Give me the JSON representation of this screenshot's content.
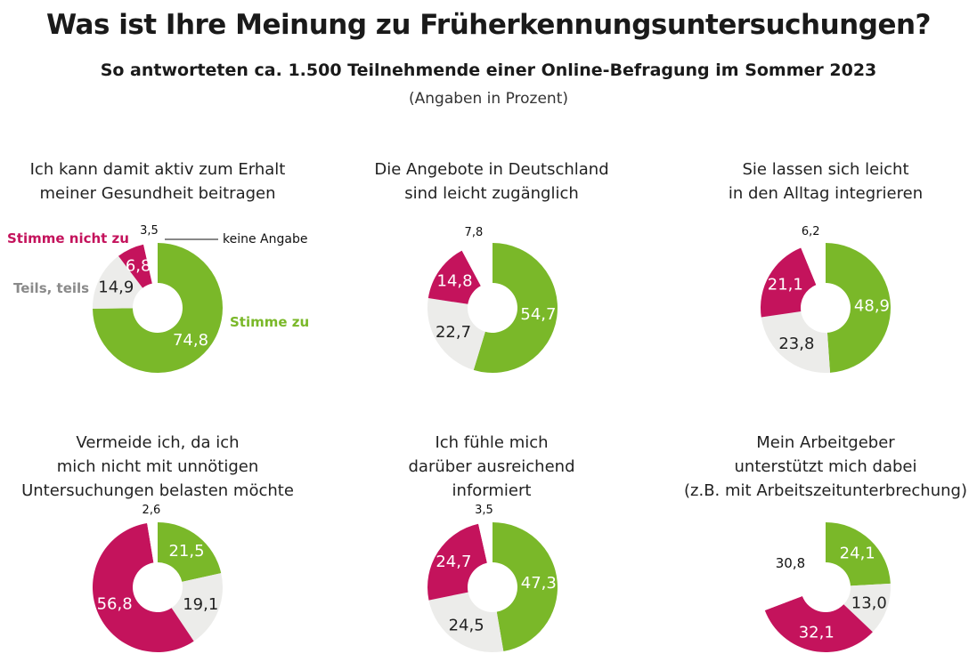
{
  "header": {
    "title": "Was ist Ihre Meinung zu Früherkennungsuntersuchungen?",
    "subtitle": "So antworteten ca. 1.500 Teilnehmende einer Online-Befragung im Sommer 2023",
    "note": "(Angaben in Prozent)"
  },
  "colors": {
    "stimme_zu": "#7ab829",
    "teils": "#ececea",
    "stimme_nicht_zu": "#c4135c",
    "keine_angabe": "#ffffff"
  },
  "legend": {
    "stimme_nicht_zu": "Stimme nicht zu",
    "teils": "Teils, teils",
    "stimme_zu": "Stimme zu",
    "keine_angabe": "keine Angabe"
  },
  "chart_data": [
    {
      "type": "pie",
      "title_lines": [
        "Ich kann damit aktiv zum Erhalt",
        "meiner Gesundheit beitragen"
      ],
      "categories": [
        "Stimme zu",
        "Teils, teils",
        "Stimme nicht zu",
        "keine Angabe"
      ],
      "values": [
        74.8,
        14.9,
        6.8,
        3.5
      ],
      "labels": [
        "74,8",
        "14,9",
        "6,8",
        "3,5"
      ]
    },
    {
      "type": "pie",
      "title_lines": [
        "Die Angebote in Deutschland",
        "sind leicht zugänglich"
      ],
      "categories": [
        "Stimme zu",
        "Teils, teils",
        "Stimme nicht zu",
        "keine Angabe"
      ],
      "values": [
        54.7,
        22.7,
        14.8,
        7.8
      ],
      "labels": [
        "54,7",
        "22,7",
        "14,8",
        "7,8"
      ]
    },
    {
      "type": "pie",
      "title_lines": [
        "Sie lassen sich leicht",
        "in den Alltag integrieren"
      ],
      "categories": [
        "Stimme zu",
        "Teils, teils",
        "Stimme nicht zu",
        "keine Angabe"
      ],
      "values": [
        48.9,
        23.8,
        21.1,
        6.2
      ],
      "labels": [
        "48,9",
        "23,8",
        "21,1",
        "6,2"
      ]
    },
    {
      "type": "pie",
      "title_lines": [
        "Vermeide ich, da ich",
        "mich nicht mit unnötigen",
        "Untersuchungen belasten möchte"
      ],
      "categories": [
        "Stimme zu",
        "Teils, teils",
        "Stimme nicht zu",
        "keine Angabe"
      ],
      "values": [
        21.5,
        19.1,
        56.8,
        2.6
      ],
      "labels": [
        "21,5",
        "19,1",
        "56,8",
        "2,6"
      ]
    },
    {
      "type": "pie",
      "title_lines": [
        "Ich fühle mich",
        "darüber ausreichend",
        "informiert"
      ],
      "categories": [
        "Stimme zu",
        "Teils, teils",
        "Stimme nicht zu",
        "keine Angabe"
      ],
      "values": [
        47.3,
        24.5,
        24.7,
        3.5
      ],
      "labels": [
        "47,3",
        "24,5",
        "24,7",
        "3,5"
      ]
    },
    {
      "type": "pie",
      "title_lines": [
        "Mein Arbeitgeber",
        "unterstützt mich dabei",
        "(z.B. mit Arbeitszeitunterbrechung)"
      ],
      "categories": [
        "Stimme zu",
        "Teils, teils",
        "Stimme nicht zu",
        "keine Angabe"
      ],
      "values": [
        24.1,
        13.0,
        32.1,
        30.8
      ],
      "labels": [
        "24,1",
        "13,0",
        "32,1",
        "30,8"
      ]
    }
  ]
}
